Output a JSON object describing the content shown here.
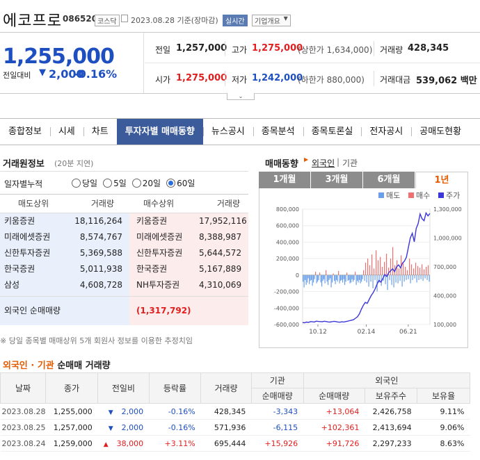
{
  "header": {
    "name": "에코프로",
    "code": "086520",
    "market": "코스닥",
    "date_text": "2023.08.28 기준(장마감)",
    "realtime": "실시간",
    "overview": "기업개요"
  },
  "price": {
    "current": "1,255,000",
    "change_label": "전일대비",
    "change": "2,000",
    "change_pct": "-0.16%"
  },
  "stats": {
    "prev_label": "전일",
    "prev": "1,257,000",
    "high_label": "고가",
    "high": "1,275,000",
    "upper_limit": "(상한가 1,634,000)",
    "volume_label": "거래량",
    "volume": "428,345",
    "open_label": "시가",
    "open": "1,275,000",
    "low_label": "저가",
    "low": "1,242,000",
    "lower_limit": "(하한가 880,000)",
    "amount_label": "거래대금",
    "amount": "539,062 백만"
  },
  "tabs": [
    "종합정보",
    "시세",
    "차트",
    "투자자별 매매동향",
    "뉴스공시",
    "종목분석",
    "종목토론실",
    "전자공시",
    "공매도현황"
  ],
  "broker": {
    "title": "거래원정보",
    "delay": "(20분 지연)",
    "daily_label": "일자별누적",
    "options": [
      "당일",
      "5일",
      "20일",
      "60일"
    ],
    "headers": [
      "매도상위",
      "거래량",
      "매수상위",
      "거래량"
    ],
    "rows": [
      {
        "sell": "키움증권",
        "sell_vol": "18,116,264",
        "buy": "키움증권",
        "buy_vol": "17,952,116"
      },
      {
        "sell": "미래에셋증권",
        "sell_vol": "8,574,767",
        "buy": "미래에셋증권",
        "buy_vol": "8,388,987"
      },
      {
        "sell": "신한투자증권",
        "sell_vol": "5,369,588",
        "buy": "신한투자증권",
        "buy_vol": "5,644,572"
      },
      {
        "sell": "한국증권",
        "sell_vol": "5,011,938",
        "buy": "한국증권",
        "buy_vol": "5,167,889"
      },
      {
        "sell": "삼성",
        "sell_vol": "4,608,728",
        "buy": "NH투자증권",
        "buy_vol": "4,310,069"
      }
    ],
    "foreign_label": "외국인 순매매량",
    "foreign_value": "(1,317,792)",
    "note": "※ 당일 종목별 매매상위 5개 회원사 정보를 이용한 추정치임"
  },
  "chart_panel": {
    "title": "매매동향",
    "foreign": "외국인",
    "institution": "기관",
    "periods": [
      "1개월",
      "3개월",
      "6개월",
      "1년"
    ],
    "legend": [
      "매도",
      "매수",
      "주가"
    ]
  },
  "chart_data": {
    "type": "bar",
    "left_axis_ticks": [
      "800,000",
      "600,000",
      "400,000",
      "200,000",
      "0",
      "-200,000",
      "-400,000",
      "-600,000"
    ],
    "right_axis_ticks": [
      "1,300,000",
      "1,000,000",
      "700,000",
      "400,000",
      "100,000"
    ],
    "x_ticks": [
      "10.12",
      "02.14",
      "06.21"
    ],
    "ylim_left": [
      -600000,
      800000
    ],
    "ylim_right": [
      100000,
      1300000
    ],
    "net_volume": [
      -80000,
      -150000,
      -60000,
      -120000,
      -90000,
      -40000,
      -110000,
      -70000,
      -60000,
      -130000,
      -90000,
      -50000,
      40000,
      -100000,
      -80000,
      -60000,
      30000,
      -90000,
      -140000,
      -70000,
      -50000,
      -100000,
      60000,
      -80000,
      -120000,
      -60000,
      -40000,
      -150000,
      -90000,
      20000,
      -70000,
      -110000,
      -60000,
      -80000,
      50000,
      -100000,
      -70000,
      -60000,
      -90000,
      -50000,
      -120000,
      -80000,
      30000,
      -70000,
      -60000,
      -100000,
      -90000,
      -50000,
      -80000,
      -60000,
      40000,
      -120000,
      -70000,
      -90000,
      -60000,
      -100000,
      -80000,
      -50000,
      60000,
      -70000,
      150000,
      -90000,
      200000,
      -140000,
      120000,
      -80000,
      250000,
      -160000,
      80000,
      -60000,
      300000,
      -200000,
      180000,
      -90000,
      220000,
      -130000,
      100000,
      -70000,
      160000,
      -110000,
      260000,
      -180000,
      90000,
      -60000,
      200000,
      -120000,
      340000,
      -150000,
      120000,
      -90000,
      180000,
      -100000,
      80000,
      -70000,
      240000,
      -140000,
      150000,
      -80000,
      100000,
      -60000,
      60000,
      -50000,
      200000,
      -100000,
      130000,
      -60000,
      80000,
      -40000,
      150000,
      -90000,
      110000,
      -60000,
      90000,
      -50000,
      130000,
      -70000,
      70000,
      -40000,
      100000,
      -60000,
      120000,
      -80000
    ],
    "price": [
      120000,
      118000,
      125000,
      122000,
      130000,
      128000,
      126000,
      135000,
      132000,
      130000,
      128000,
      134000,
      131000,
      127000,
      125000,
      129000,
      133000,
      130000,
      126000,
      124000,
      128000,
      126000,
      130000,
      135000,
      140000,
      145000,
      150000,
      165000,
      180000,
      210000,
      260000,
      300000,
      330000,
      320000,
      360000,
      400000,
      430000,
      470000,
      520000,
      560000,
      540000,
      580000,
      620000,
      600000,
      640000,
      660000,
      680000,
      650000,
      700000,
      720000,
      690000,
      740000,
      760000,
      800000,
      900000,
      1000000,
      1050000,
      960000,
      1100000,
      1150000,
      1250000,
      1200000,
      1180000,
      1260000,
      1230000,
      1255000
    ]
  },
  "trade_table": {
    "title_foreign": "외국인",
    "title_sep": " · ",
    "title_inst": "기관",
    "title_rest": " 순매매 거래량",
    "headers": {
      "date": "날짜",
      "close": "종가",
      "change": "전일비",
      "rate": "등락률",
      "volume": "거래량",
      "inst": "기관",
      "inst_net": "순매매량",
      "foreign": "외국인",
      "foreign_net": "순매매량",
      "holdings": "보유주수",
      "ratio": "보유율"
    },
    "rows": [
      {
        "date": "2023.08.28",
        "close": "1,255,000",
        "change": "2,000",
        "dir": "down",
        "rate": "-0.16%",
        "volume": "428,345",
        "inst_net": "-3,343",
        "foreign_net": "+13,064",
        "holdings": "2,426,758",
        "ratio": "9.11%"
      },
      {
        "date": "2023.08.25",
        "close": "1,257,000",
        "change": "2,000",
        "dir": "down",
        "rate": "-0.16%",
        "volume": "571,936",
        "inst_net": "-6,115",
        "foreign_net": "+102,361",
        "holdings": "2,413,694",
        "ratio": "9.06%"
      },
      {
        "date": "2023.08.24",
        "close": "1,259,000",
        "change": "38,000",
        "dir": "up",
        "rate": "+3.11%",
        "volume": "695,444",
        "inst_net": "+15,926",
        "foreign_net": "+91,726",
        "holdings": "2,297,233",
        "ratio": "8.63%"
      }
    ]
  },
  "colors": {
    "sell": "#6a9ee8",
    "buy": "#f07070",
    "price": "#3a36d8",
    "tab_active": "#3b5b9b"
  }
}
